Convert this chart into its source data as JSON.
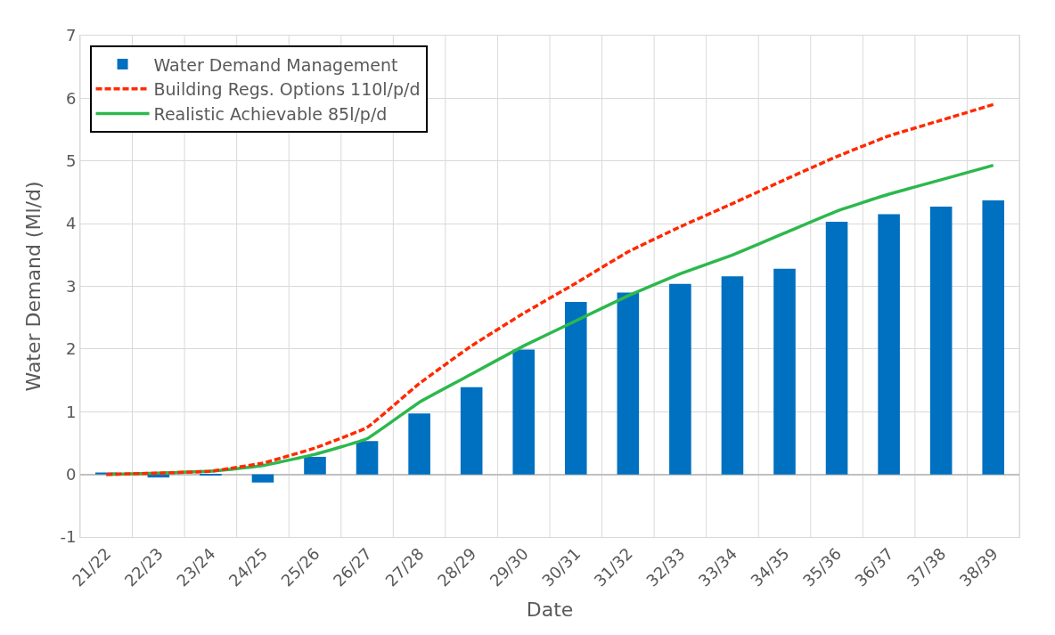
{
  "chart_data": {
    "type": "bar",
    "xlabel": "Date",
    "ylabel": "Water Demand (Ml/d)",
    "categories": [
      "21/22",
      "22/23",
      "23/24",
      "24/25",
      "25/26",
      "26/27",
      "27/28",
      "28/29",
      "29/30",
      "30/31",
      "31/32",
      "32/33",
      "33/34",
      "34/35",
      "35/36",
      "36/37",
      "37/38",
      "38/39"
    ],
    "series": [
      {
        "name": "Water Demand Management",
        "color": "#0070c0",
        "values": [
          0.03,
          -0.05,
          -0.02,
          -0.13,
          0.28,
          0.53,
          0.97,
          1.39,
          1.99,
          2.75,
          2.9,
          3.04,
          3.16,
          3.28,
          4.03,
          4.15,
          4.27,
          4.37
        ]
      },
      {
        "name": "Building Regs. Options 110l/p/d",
        "type": "line",
        "line_style": "dashed",
        "color": "#ff2a00",
        "values": [
          0,
          0.02,
          0.05,
          0.18,
          0.42,
          0.75,
          1.45,
          2.05,
          2.57,
          3.05,
          3.55,
          3.95,
          4.32,
          4.7,
          5.07,
          5.4,
          5.65,
          5.9
        ]
      },
      {
        "name": "Realistic Achievable 85l/p/d",
        "type": "line",
        "line_style": "solid",
        "color": "#2db84d",
        "values": [
          0,
          0.02,
          0.05,
          0.14,
          0.32,
          0.57,
          1.15,
          1.6,
          2.05,
          2.45,
          2.85,
          3.2,
          3.5,
          3.85,
          4.2,
          4.47,
          4.7,
          4.93
        ]
      }
    ],
    "ylim": [
      -1,
      7
    ],
    "yticks": [
      -1,
      0,
      1,
      2,
      3,
      4,
      5,
      6,
      7
    ],
    "grid": true,
    "legend": "top left",
    "marker": "none"
  }
}
